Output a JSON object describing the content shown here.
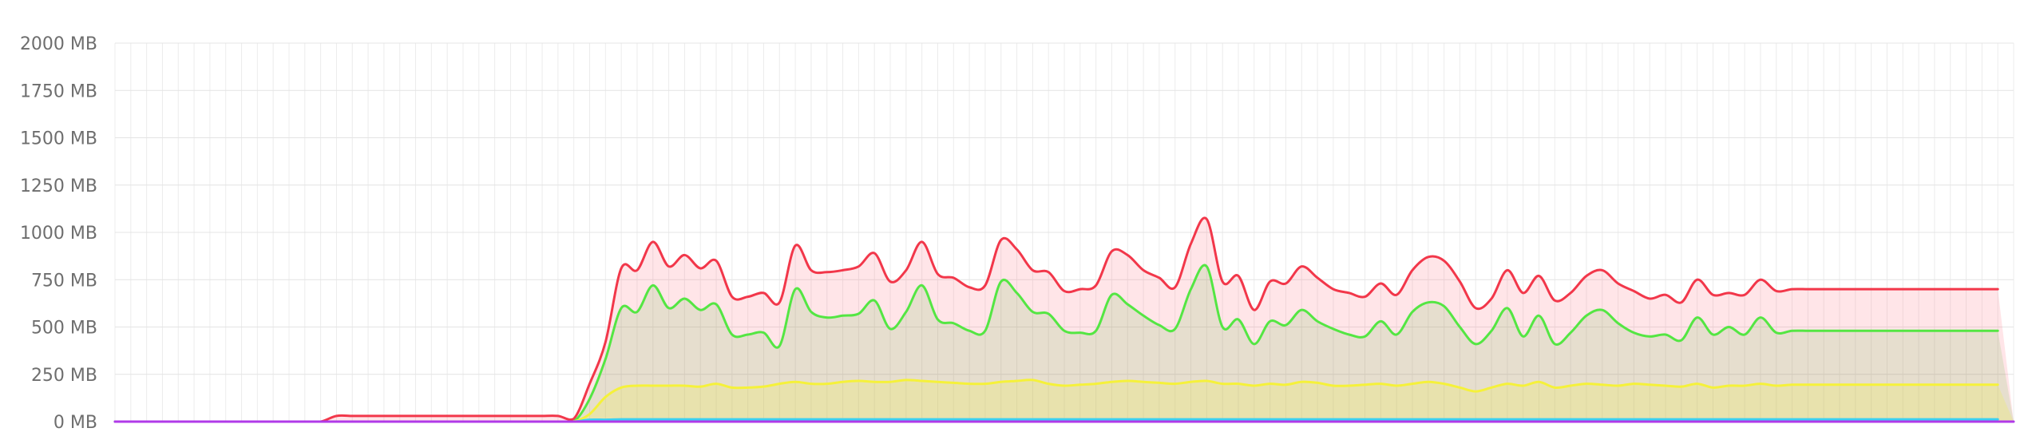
{
  "chart_data": {
    "type": "area",
    "title": "",
    "xlabel": "",
    "ylabel": "",
    "ylim": [
      0,
      2000
    ],
    "y_ticks": [
      "0 MB",
      "250 MB",
      "500 MB",
      "750 MB",
      "1000 MB",
      "1250 MB",
      "1500 MB",
      "1750 MB",
      "2000 MB"
    ],
    "y_tick_values": [
      0,
      250,
      500,
      750,
      1000,
      1250,
      1500,
      1750,
      2000
    ],
    "grid": true,
    "legend": "none",
    "x_count": 121,
    "series": [
      {
        "color": "#f2374a",
        "fill": "rgba(255,110,130,0.18)",
        "values": [
          0,
          0,
          0,
          0,
          0,
          0,
          0,
          0,
          0,
          0,
          0,
          0,
          0,
          0,
          30,
          30,
          30,
          30,
          30,
          30,
          30,
          30,
          30,
          30,
          30,
          30,
          30,
          30,
          30,
          15,
          200,
          420,
          810,
          800,
          950,
          820,
          880,
          810,
          850,
          660,
          660,
          680,
          630,
          930,
          800,
          790,
          800,
          820,
          890,
          740,
          800,
          950,
          780,
          760,
          710,
          720,
          960,
          910,
          800,
          790,
          690,
          700,
          720,
          900,
          880,
          800,
          760,
          710,
          940,
          1070,
          740,
          770,
          590,
          740,
          730,
          820,
          760,
          700,
          680,
          660,
          730,
          670,
          800,
          870,
          850,
          740,
          600,
          650,
          800,
          680,
          770,
          640,
          680,
          770,
          800,
          730,
          690,
          650,
          670,
          630,
          750,
          670,
          680,
          670,
          750,
          690,
          700,
          700,
          700,
          700,
          700,
          700,
          700,
          700,
          700,
          700,
          700,
          700,
          700,
          700
        ]
      },
      {
        "color": "#54e643",
        "fill": "rgba(90,180,60,0.15)",
        "values": [
          0,
          0,
          0,
          0,
          0,
          0,
          0,
          0,
          0,
          0,
          0,
          0,
          0,
          0,
          0,
          0,
          0,
          0,
          0,
          0,
          0,
          0,
          0,
          0,
          0,
          0,
          0,
          0,
          0,
          0,
          120,
          330,
          600,
          580,
          720,
          600,
          650,
          590,
          620,
          460,
          460,
          470,
          400,
          700,
          580,
          550,
          560,
          570,
          640,
          490,
          580,
          720,
          540,
          520,
          480,
          480,
          740,
          680,
          580,
          570,
          480,
          470,
          480,
          670,
          620,
          560,
          510,
          490,
          700,
          820,
          500,
          540,
          410,
          530,
          510,
          590,
          530,
          490,
          460,
          450,
          530,
          460,
          580,
          630,
          610,
          500,
          410,
          480,
          600,
          450,
          560,
          410,
          470,
          560,
          590,
          520,
          470,
          450,
          460,
          430,
          550,
          460,
          500,
          460,
          550,
          470,
          480,
          480,
          480,
          480,
          480,
          480,
          480,
          480,
          480,
          480,
          480,
          480,
          480,
          480
        ]
      },
      {
        "color": "#f5f13a",
        "fill": "rgba(240,240,60,0.22)",
        "values": [
          0,
          0,
          0,
          0,
          0,
          0,
          0,
          0,
          0,
          0,
          0,
          0,
          0,
          0,
          0,
          0,
          0,
          0,
          0,
          0,
          0,
          0,
          0,
          0,
          0,
          0,
          0,
          0,
          0,
          0,
          40,
          130,
          180,
          190,
          190,
          190,
          190,
          185,
          200,
          180,
          180,
          185,
          200,
          210,
          200,
          200,
          210,
          215,
          210,
          210,
          220,
          215,
          210,
          205,
          200,
          200,
          210,
          215,
          220,
          200,
          190,
          195,
          200,
          210,
          215,
          210,
          205,
          200,
          210,
          215,
          200,
          200,
          190,
          200,
          195,
          210,
          205,
          190,
          190,
          195,
          200,
          190,
          200,
          210,
          200,
          180,
          160,
          180,
          200,
          190,
          210,
          180,
          190,
          200,
          195,
          190,
          200,
          195,
          190,
          185,
          200,
          180,
          190,
          190,
          200,
          190,
          195,
          195,
          195,
          195,
          195,
          195,
          195,
          195,
          195,
          195,
          195,
          195,
          195,
          195
        ]
      },
      {
        "color": "#3ad0f2",
        "fill": "none",
        "values": [
          0,
          0,
          0,
          0,
          0,
          0,
          0,
          0,
          0,
          0,
          0,
          0,
          0,
          0,
          0,
          0,
          0,
          0,
          0,
          0,
          0,
          0,
          0,
          0,
          0,
          0,
          0,
          0,
          0,
          0,
          10,
          10,
          12,
          12,
          12,
          12,
          12,
          12,
          12,
          12,
          12,
          12,
          12,
          12,
          12,
          12,
          12,
          12,
          12,
          12,
          12,
          12,
          12,
          12,
          12,
          12,
          12,
          12,
          12,
          12,
          12,
          12,
          12,
          12,
          12,
          12,
          12,
          12,
          12,
          12,
          12,
          12,
          12,
          12,
          12,
          12,
          12,
          12,
          12,
          12,
          12,
          12,
          12,
          12,
          12,
          12,
          12,
          12,
          12,
          12,
          12,
          12,
          12,
          12,
          12,
          12,
          12,
          12,
          12,
          12,
          12,
          12,
          12,
          12,
          12,
          12,
          12,
          12,
          12,
          12,
          12,
          12,
          12,
          12,
          12,
          12,
          12,
          12,
          12,
          12
        ]
      },
      {
        "color": "#b03ae8",
        "fill": "none",
        "values": [
          0,
          0,
          0,
          0,
          0,
          0,
          0,
          0,
          0,
          0,
          0,
          0,
          0,
          0,
          0,
          0,
          0,
          0,
          0,
          0,
          0,
          0,
          0,
          0,
          0,
          0,
          0,
          0,
          0,
          0,
          0,
          0,
          0,
          0,
          0,
          0,
          0,
          0,
          0,
          0,
          0,
          0,
          0,
          0,
          0,
          0,
          0,
          0,
          0,
          0,
          0,
          0,
          0,
          0,
          0,
          0,
          0,
          0,
          0,
          0,
          0,
          0,
          0,
          0,
          0,
          0,
          0,
          0,
          0,
          0,
          0,
          0,
          0,
          0,
          0,
          0,
          0,
          0,
          0,
          0,
          0,
          0,
          0,
          0,
          0,
          0,
          0,
          0,
          0,
          0,
          0,
          0,
          0,
          0,
          0,
          0,
          0,
          0,
          0,
          0,
          0,
          0,
          0,
          0,
          0,
          0,
          0,
          0,
          0,
          0,
          0,
          0,
          0,
          0,
          0,
          0,
          0,
          0,
          0,
          0,
          0
        ]
      }
    ]
  }
}
